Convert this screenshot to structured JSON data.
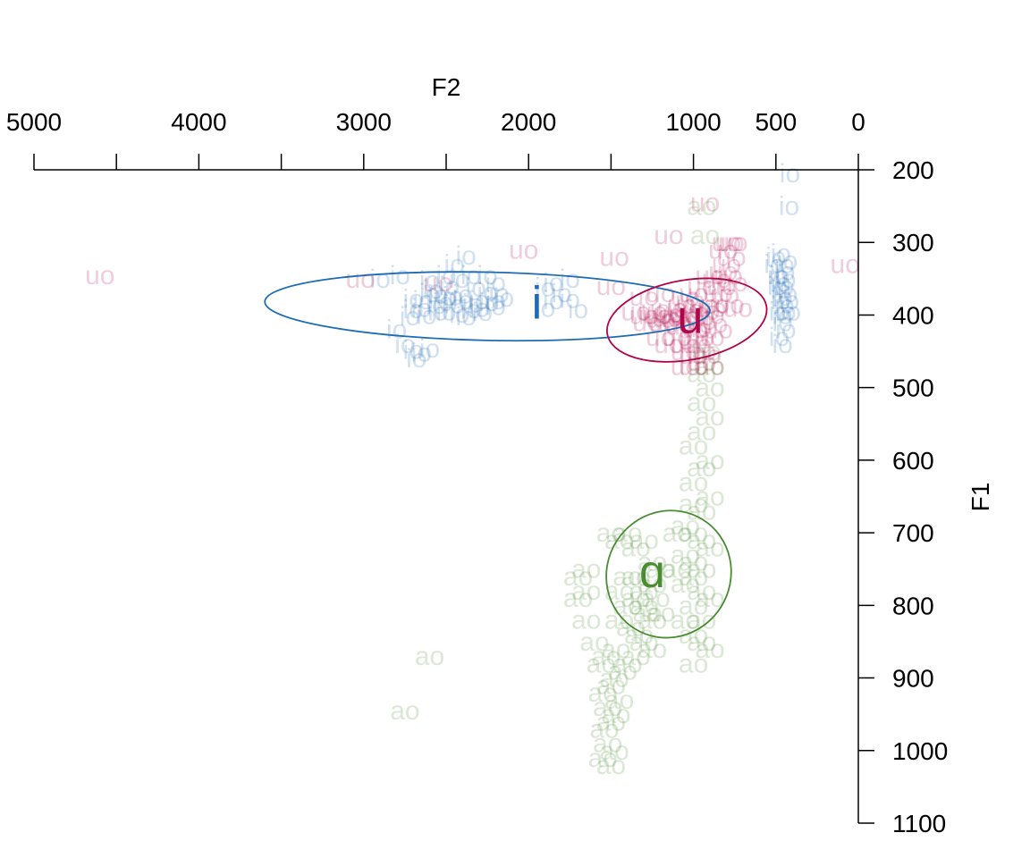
{
  "chart_data": {
    "type": "scatter",
    "title": "",
    "xlabel": "F2",
    "ylabel": "F1",
    "x_axis_position": "top",
    "y_axis_position": "right",
    "x_reversed": true,
    "y_reversed": true,
    "xlim": [
      5000,
      0
    ],
    "ylim": [
      200,
      1100
    ],
    "x_ticks": [
      5000,
      4500,
      4000,
      3500,
      3000,
      2500,
      2000,
      1500,
      1000,
      500,
      0
    ],
    "x_tick_labels": [
      "5000",
      "",
      "4000",
      "",
      "3000",
      "",
      "2000",
      "",
      "1000",
      "500",
      "0"
    ],
    "y_ticks": [
      200,
      300,
      400,
      500,
      600,
      700,
      800,
      900,
      1000,
      1100
    ],
    "y_tick_labels": [
      "200",
      "300",
      "400",
      "500",
      "600",
      "700",
      "800",
      "900",
      "1000",
      "1100"
    ],
    "grid": false,
    "series": [
      {
        "name": "i",
        "color": "#1c6bb5",
        "token_label": "io",
        "centroid": {
          "x": 1950,
          "y": 385
        },
        "ellipse": {
          "cx": 2250,
          "cy": 388,
          "rx": 1350,
          "ry": 47,
          "angle_deg": 1.2
        },
        "points": [
          [
            2700,
            378
          ],
          [
            2650,
            390
          ],
          [
            2600,
            370
          ],
          [
            2550,
            395
          ],
          [
            2500,
            375
          ],
          [
            2450,
            385
          ],
          [
            2400,
            372
          ],
          [
            2350,
            392
          ],
          [
            2300,
            380
          ],
          [
            2250,
            368
          ],
          [
            2200,
            388
          ],
          [
            2150,
            376
          ],
          [
            2620,
            400
          ],
          [
            2580,
            365
          ],
          [
            2480,
            360
          ],
          [
            2420,
            398
          ],
          [
            2380,
            402
          ],
          [
            2320,
            362
          ],
          [
            2280,
            396
          ],
          [
            2180,
            370
          ],
          [
            2520,
            382
          ],
          [
            2460,
            374
          ],
          [
            2560,
            386
          ],
          [
            2340,
            384
          ],
          [
            2240,
            382
          ],
          [
            2700,
            392
          ],
          [
            2640,
            380
          ],
          [
            2500,
            395
          ],
          [
            2400,
            380
          ],
          [
            2300,
            390
          ],
          [
            2200,
            380
          ],
          [
            2550,
            372
          ],
          [
            2420,
            350
          ],
          [
            2350,
            345
          ],
          [
            2500,
            345
          ],
          [
            2600,
            352
          ],
          [
            2380,
            318
          ],
          [
            2450,
            330
          ],
          [
            2250,
            345
          ],
          [
            2200,
            355
          ],
          [
            2750,
            440
          ],
          [
            2700,
            448
          ],
          [
            2650,
            452
          ],
          [
            2600,
            446
          ],
          [
            2680,
            460
          ],
          [
            2800,
            420
          ],
          [
            2720,
            402
          ],
          [
            2900,
            350
          ],
          [
            2780,
            345
          ],
          [
            1850,
            380
          ],
          [
            1800,
            370
          ],
          [
            1750,
            378
          ],
          [
            1900,
            390
          ],
          [
            1700,
            392
          ],
          [
            1750,
            350
          ],
          [
            1900,
            362
          ],
          [
            1850,
            355
          ],
          [
            480,
            345
          ],
          [
            450,
            360
          ],
          [
            470,
            380
          ],
          [
            440,
            395
          ],
          [
            460,
            410
          ],
          [
            480,
            430
          ],
          [
            450,
            330
          ],
          [
            470,
            315
          ],
          [
            500,
            320
          ],
          [
            490,
            345
          ],
          [
            430,
            370
          ],
          [
            440,
            420
          ],
          [
            460,
            400
          ],
          [
            450,
            385
          ],
          [
            470,
            365
          ],
          [
            440,
            350
          ],
          [
            410,
            395
          ],
          [
            510,
            330
          ],
          [
            490,
            360
          ],
          [
            460,
            440
          ],
          [
            420,
            380
          ],
          [
            430,
            325
          ],
          [
            415,
            205
          ],
          [
            420,
            250
          ],
          [
            460,
            375
          ],
          [
            470,
            355
          ],
          [
            445,
            340
          ],
          [
            480,
            395
          ]
        ]
      },
      {
        "name": "u",
        "color": "#b0054b",
        "token_label": "uo",
        "centroid": {
          "x": 1020,
          "y": 405
        },
        "ellipse": {
          "cx": 1040,
          "cy": 407,
          "rx": 490,
          "ry": 55,
          "angle_deg": -10
        },
        "points": [
          [
            1300,
            400
          ],
          [
            1250,
            395
          ],
          [
            1200,
            405
          ],
          [
            1150,
            398
          ],
          [
            1100,
            410
          ],
          [
            1050,
            402
          ],
          [
            1000,
            396
          ],
          [
            950,
            408
          ],
          [
            900,
            400
          ],
          [
            1280,
            410
          ],
          [
            1230,
            392
          ],
          [
            1180,
            412
          ],
          [
            1130,
            390
          ],
          [
            1080,
            415
          ],
          [
            1030,
            392
          ],
          [
            980,
            418
          ],
          [
            930,
            394
          ],
          [
            880,
            412
          ],
          [
            1220,
            400
          ],
          [
            1160,
            404
          ],
          [
            1060,
            398
          ],
          [
            960,
            402
          ],
          [
            870,
            385
          ],
          [
            850,
            370
          ],
          [
            830,
            360
          ],
          [
            810,
            372
          ],
          [
            860,
            350
          ],
          [
            900,
            345
          ],
          [
            950,
            360
          ],
          [
            1000,
            370
          ],
          [
            1050,
            375
          ],
          [
            1000,
            420
          ],
          [
            980,
            440
          ],
          [
            950,
            450
          ],
          [
            920,
            455
          ],
          [
            1000,
            455
          ],
          [
            1050,
            450
          ],
          [
            900,
            430
          ],
          [
            850,
            420
          ],
          [
            1100,
            430
          ],
          [
            1050,
            440
          ],
          [
            960,
            430
          ],
          [
            1120,
            400
          ],
          [
            1070,
            385
          ],
          [
            1020,
            380
          ],
          [
            940,
            385
          ],
          [
            890,
            390
          ],
          [
            800,
            300
          ],
          [
            780,
            300
          ],
          [
            760,
            300
          ],
          [
            820,
            310
          ],
          [
            770,
            320
          ],
          [
            800,
            330
          ],
          [
            790,
            345
          ],
          [
            760,
            355
          ],
          [
            820,
            340
          ],
          [
            730,
            390
          ],
          [
            780,
            385
          ],
          [
            1200,
            430
          ],
          [
            1150,
            440
          ],
          [
            900,
            470
          ],
          [
            950,
            465
          ],
          [
            1000,
            470
          ],
          [
            1050,
            470
          ],
          [
            1000,
            435
          ],
          [
            1300,
            375
          ],
          [
            1500,
            360
          ],
          [
            1200,
            370
          ],
          [
            1350,
            395
          ],
          [
            1480,
            320
          ],
          [
            2030,
            310
          ],
          [
            2550,
            355
          ],
          [
            3020,
            350
          ],
          [
            4600,
            345
          ],
          [
            1150,
            290
          ],
          [
            930,
            245
          ],
          [
            80,
            330
          ]
        ]
      },
      {
        "name": "ɑ",
        "color": "#4a8c32",
        "token_label": "ao",
        "centroid": {
          "x": 1250,
          "y": 755
        },
        "ellipse": {
          "cx": 1150,
          "cy": 757,
          "rx": 390,
          "ry": 85,
          "angle_deg": -58
        },
        "points": [
          [
            1550,
            920
          ],
          [
            1500,
            910
          ],
          [
            1450,
            930
          ],
          [
            1520,
            940
          ],
          [
            1480,
            900
          ],
          [
            1560,
            880
          ],
          [
            1430,
            890
          ],
          [
            1500,
            960
          ],
          [
            1540,
            970
          ],
          [
            1470,
            950
          ],
          [
            1520,
            990
          ],
          [
            1480,
            1000
          ],
          [
            1550,
            1010
          ],
          [
            1500,
            1020
          ],
          [
            1530,
            870
          ],
          [
            1470,
            860
          ],
          [
            1450,
            820
          ],
          [
            1400,
            800
          ],
          [
            1350,
            790
          ],
          [
            1300,
            780
          ],
          [
            1250,
            770
          ],
          [
            1350,
            760
          ],
          [
            1300,
            800
          ],
          [
            1250,
            820
          ],
          [
            1200,
            810
          ],
          [
            1380,
            830
          ],
          [
            1330,
            840
          ],
          [
            1280,
            810
          ],
          [
            1230,
            790
          ],
          [
            1450,
            780
          ],
          [
            1400,
            760
          ],
          [
            1350,
            720
          ],
          [
            1300,
            710
          ],
          [
            1400,
            700
          ],
          [
            1450,
            710
          ],
          [
            1500,
            700
          ],
          [
            1250,
            740
          ],
          [
            1200,
            750
          ],
          [
            1300,
            850
          ],
          [
            1350,
            870
          ],
          [
            1400,
            880
          ],
          [
            1250,
            860
          ],
          [
            1600,
            850
          ],
          [
            1650,
            820
          ],
          [
            1700,
            790
          ],
          [
            1650,
            780
          ],
          [
            1100,
            700
          ],
          [
            1050,
            690
          ],
          [
            1000,
            700
          ],
          [
            950,
            710
          ],
          [
            900,
            720
          ],
          [
            1050,
            730
          ],
          [
            1000,
            740
          ],
          [
            950,
            750
          ],
          [
            1000,
            760
          ],
          [
            950,
            780
          ],
          [
            900,
            790
          ],
          [
            1050,
            770
          ],
          [
            1000,
            800
          ],
          [
            950,
            820
          ],
          [
            1100,
            750
          ],
          [
            1000,
            660
          ],
          [
            950,
            670
          ],
          [
            900,
            650
          ],
          [
            1000,
            630
          ],
          [
            950,
            610
          ],
          [
            900,
            600
          ],
          [
            1000,
            580
          ],
          [
            950,
            560
          ],
          [
            900,
            540
          ],
          [
            950,
            520
          ],
          [
            900,
            500
          ],
          [
            950,
            480
          ],
          [
            900,
            470
          ],
          [
            920,
            450
          ],
          [
            1000,
            840
          ],
          [
            950,
            850
          ],
          [
            900,
            860
          ],
          [
            1000,
            880
          ],
          [
            1050,
            820
          ],
          [
            2600,
            870
          ],
          [
            2750,
            945
          ],
          [
            930,
            290
          ],
          [
            950,
            250
          ],
          [
            1650,
            750
          ],
          [
            1700,
            760
          ]
        ]
      }
    ]
  }
}
